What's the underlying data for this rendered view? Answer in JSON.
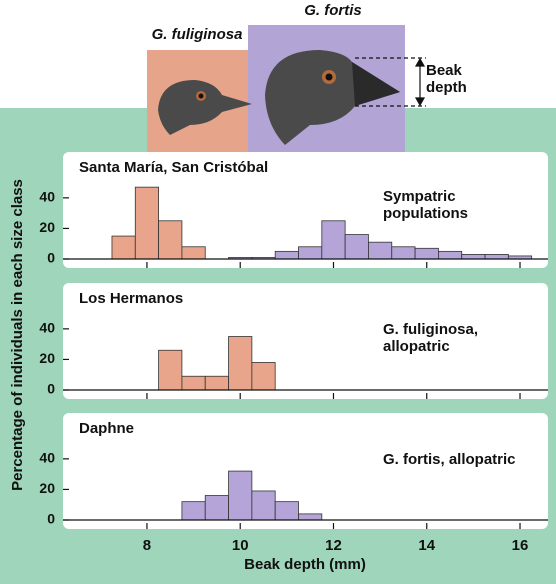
{
  "chart_data": [
    {
      "type": "histogram",
      "title": "Santa María, San Cristóbal",
      "annotation": "Sympatric populations",
      "series": [
        {
          "name": "G. fuliginosa",
          "color": "#e8a58b",
          "bins": [
            7.25,
            7.75,
            8.25,
            8.75,
            9.25
          ],
          "values": [
            15,
            47,
            25,
            8
          ]
        },
        {
          "name": "G. fortis",
          "color": "#b4a4d8",
          "bins": [
            9.75,
            10.25,
            10.75,
            11.25,
            11.75,
            12.25,
            12.75,
            13.25,
            13.75,
            14.25,
            14.75,
            15.25,
            15.75,
            16.25
          ],
          "values": [
            1,
            1,
            5,
            8,
            25,
            16,
            11,
            8,
            7,
            5,
            3,
            3,
            2
          ]
        }
      ],
      "xlim": [
        6.2,
        16.6
      ],
      "xticks": [
        8,
        10,
        12,
        14,
        16
      ],
      "ylim": [
        0,
        70
      ],
      "yticks": [
        0,
        20,
        40
      ]
    },
    {
      "type": "histogram",
      "title": "Los Hermanos",
      "annotation": "G. fuliginosa, allopatric",
      "series": [
        {
          "name": "G. fuliginosa",
          "color": "#e8a58b",
          "bins": [
            8.25,
            8.75,
            9.25,
            9.75,
            10.25,
            10.75
          ],
          "values": [
            26,
            9,
            9,
            35,
            18
          ]
        }
      ],
      "xlim": [
        6.2,
        16.6
      ],
      "xticks": [
        8,
        10,
        12,
        14,
        16
      ],
      "ylim": [
        0,
        70
      ],
      "yticks": [
        0,
        20,
        40
      ]
    },
    {
      "type": "histogram",
      "title": "Daphne",
      "annotation": "G. fortis, allopatric",
      "series": [
        {
          "name": "G. fortis",
          "color": "#b4a4d8",
          "bins": [
            8.75,
            9.25,
            9.75,
            10.25,
            10.75,
            11.25,
            11.75
          ],
          "values": [
            12,
            16,
            32,
            19,
            12,
            4
          ]
        }
      ],
      "xlim": [
        6.2,
        16.6
      ],
      "xticks": [
        8,
        10,
        12,
        14,
        16
      ],
      "ylim": [
        0,
        70
      ],
      "yticks": [
        0,
        20,
        40
      ],
      "xlabel": "Beak depth (mm)",
      "ylabel": "Percentage of individuals in each size class"
    }
  ],
  "beak_label": "Beak depth"
}
